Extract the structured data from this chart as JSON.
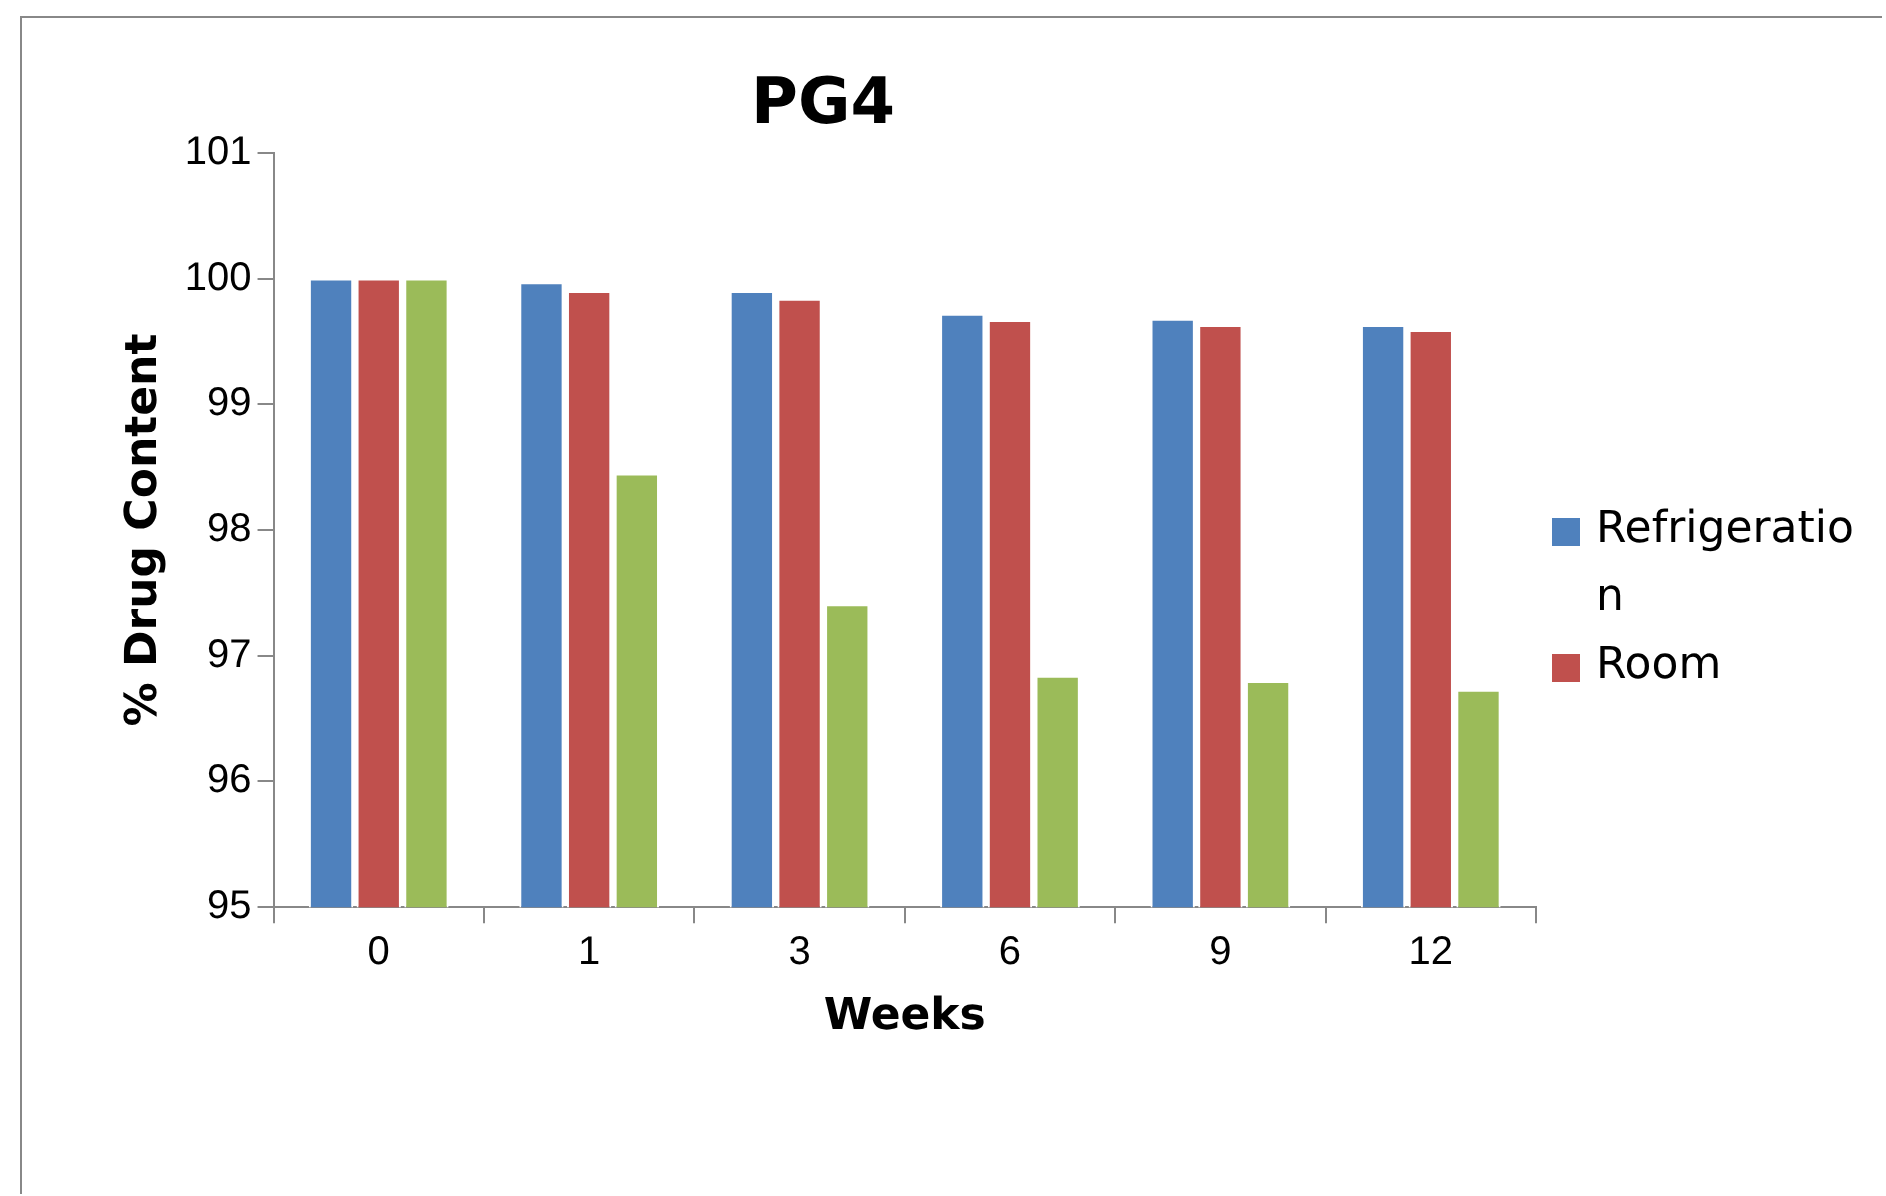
{
  "chart_data": {
    "type": "bar",
    "title": "PG4",
    "xlabel": "Weeks",
    "ylabel": "% Drug Content",
    "categories": [
      "0",
      "1",
      "3",
      "6",
      "9",
      "12"
    ],
    "series": [
      {
        "name": "Refrigeration",
        "color": "#4f81bd",
        "values": [
          100,
          99.97,
          99.9,
          99.72,
          99.68,
          99.63
        ]
      },
      {
        "name": "Room",
        "color": "#c0504d",
        "values": [
          100,
          99.9,
          99.84,
          99.67,
          99.63,
          99.59
        ]
      },
      {
        "color": "#9bbb59",
        "values": [
          100,
          98.45,
          97.41,
          96.84,
          96.8,
          96.73
        ]
      }
    ],
    "ylim": [
      95,
      101
    ],
    "yticks": [
      95,
      96,
      97,
      98,
      99,
      100,
      101
    ],
    "legend": "right"
  }
}
